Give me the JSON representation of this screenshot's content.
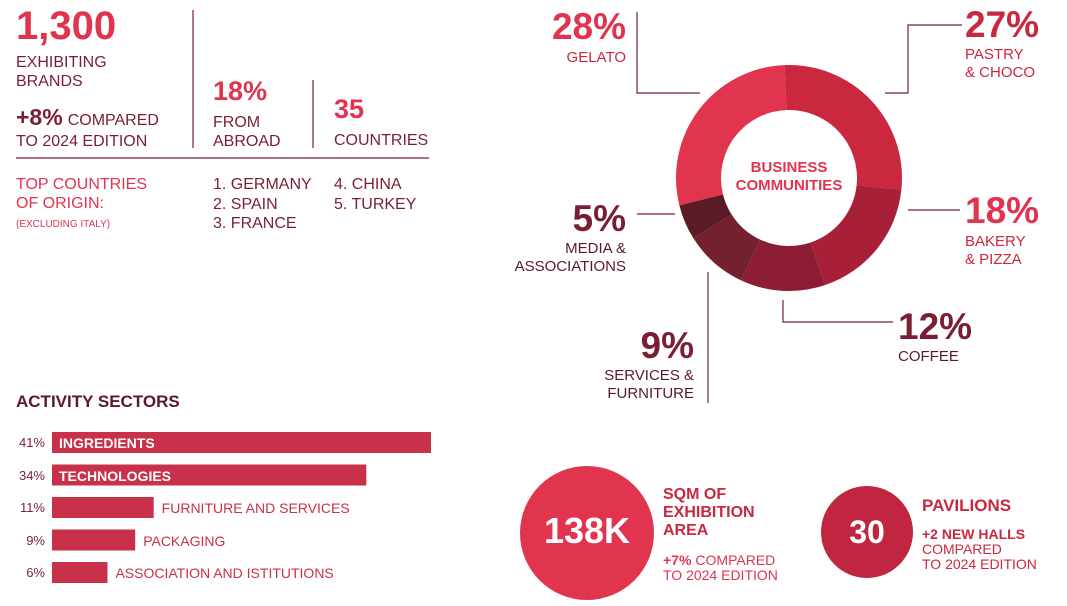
{
  "header": {
    "brands": {
      "value": "1,300",
      "label": "EXHIBITING\nBRANDS",
      "change": "+8%",
      "change_label": "COMPARED\nTO 2024 EDITION"
    },
    "abroad": {
      "value": "18%",
      "label": "FROM\nABROAD"
    },
    "countries": {
      "value": "35",
      "label": "COUNTRIES"
    },
    "origin": {
      "title": "TOP COUNTRIES\nOF ORIGIN:",
      "note": "(EXCLUDING ITALY)",
      "list": [
        "1. GERMANY",
        "2. SPAIN",
        "3. FRANCE",
        "4. CHINA",
        "5. TURKEY"
      ]
    }
  },
  "chart_data": [
    {
      "type": "pie",
      "donut": true,
      "center_label": "BUSINESS\nCOMMUNITIES",
      "categories": [
        "GELATO",
        "PASTRY\n& CHOCO",
        "BAKERY\n& PIZZA",
        "COFFEE",
        "SERVICES &\nFURNITURE",
        "MEDIA &\nASSOCIATIONS"
      ],
      "values": [
        28,
        27,
        18,
        12,
        9,
        5
      ],
      "value_labels": [
        "28%",
        "27%",
        "18%",
        "12%",
        "9%",
        "5%"
      ],
      "colors": [
        "#e0344f",
        "#c9283f",
        "#a81f38",
        "#8c1d33",
        "#74202f",
        "#5a1a26"
      ]
    },
    {
      "type": "bar",
      "orientation": "horizontal",
      "title": "ACTIVITY SECTORS",
      "categories": [
        "INGREDIENTS",
        "TECHNOLOGIES",
        "FURNITURE AND SERVICES",
        "PACKAGING",
        "ASSOCIATION AND ISTITUTIONS"
      ],
      "values": [
        41,
        34,
        11,
        9,
        6
      ],
      "value_labels": [
        "41%",
        "34%",
        "11%",
        "9%",
        "6%"
      ],
      "color": "#c9304a"
    }
  ],
  "area": {
    "value": "138K",
    "label": "SQM OF\nEXHIBITION\nAREA",
    "change": "+7%",
    "change_label": "COMPARED\nTO 2024 EDITION"
  },
  "pavilions": {
    "value": "30",
    "label": "PAVILIONS",
    "change": "+2 NEW HALLS",
    "change_label": "COMPARED\nTO 2024 EDITION"
  }
}
